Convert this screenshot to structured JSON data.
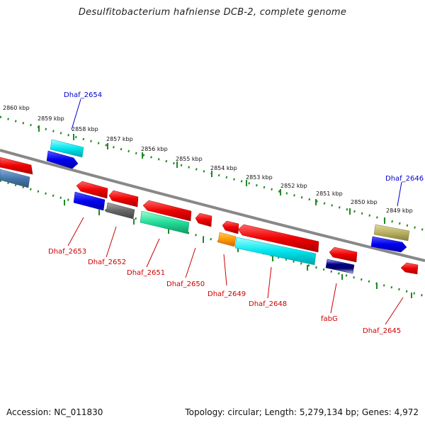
{
  "title": "Desulfitobacterium hafniense DCB-2, complete genome",
  "footer": {
    "accession": "Accession: NC_011830",
    "summary": "Topology: circular; Length: 5,279,134 bp; Genes: 4,972"
  },
  "ticks": [
    "2860 kbp",
    "2859 kbp",
    "2858 kbp",
    "2857 kbp",
    "2856 kbp",
    "2855 kbp",
    "2854 kbp",
    "2853 kbp",
    "2852 kbp",
    "2851 kbp",
    "2850 kbp",
    "2849 kbp"
  ],
  "gene_labels": {
    "top": [
      "Dhaf_2654",
      "Dhaf_2646"
    ],
    "bottom": [
      "Dhaf_2653",
      "Dhaf_2652",
      "Dhaf_2651",
      "Dhaf_2650",
      "Dhaf_2649",
      "Dhaf_2648",
      "fabG",
      "Dhaf_2645"
    ]
  },
  "colors": {
    "red": "#ee0000",
    "blue": "#0000ee",
    "cyan": "#00e5ee",
    "gray": "#666666",
    "green": "#22dd99",
    "orange": "#ff9900",
    "olive": "#b8b060",
    "steel": "#4477aa",
    "navy": "#000088",
    "dots": "#228822",
    "backbone": "#888888",
    "label_red": "#cc0000",
    "label_blue": "#0000cc"
  }
}
